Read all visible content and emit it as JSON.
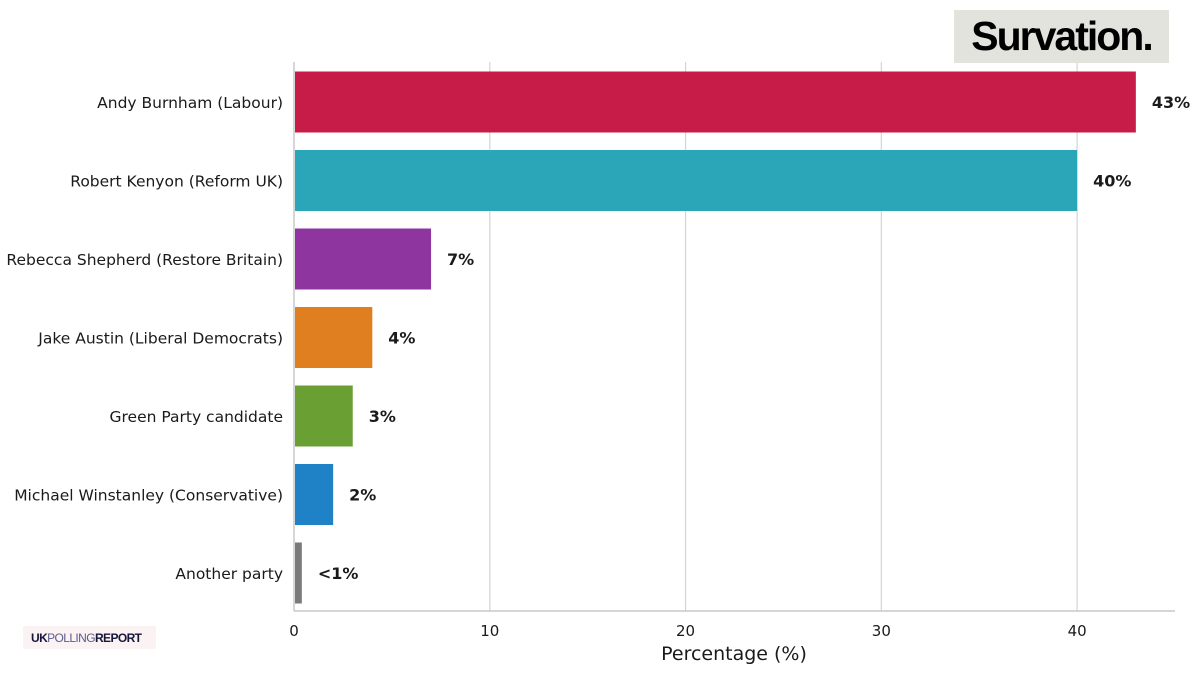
{
  "branding": {
    "pollster_logo_text": "Survation.",
    "source_logo": {
      "part1": "UK",
      "part2": "POLLING",
      "part3": "REPORT"
    }
  },
  "chart_data": {
    "type": "bar",
    "orientation": "horizontal",
    "title": "",
    "xlabel": "Percentage (%)",
    "ylabel": "",
    "xlim": [
      0,
      45
    ],
    "x_ticks": [
      0,
      10,
      20,
      30,
      40
    ],
    "grid": "vertical",
    "categories": [
      "Andy Burnham (Labour)",
      "Robert Kenyon (Reform UK)",
      "Rebecca Shepherd (Restore Britain)",
      "Jake Austin (Liberal Democrats)",
      "Green Party candidate",
      "Michael Winstanley (Conservative)",
      "Another party"
    ],
    "values": [
      43,
      40,
      7,
      4,
      3,
      2,
      0.4
    ],
    "value_labels": [
      "43%",
      "40%",
      "7%",
      "4%",
      "3%",
      "2%",
      "<1%"
    ],
    "colors": [
      "#c71c47",
      "#2aa6b8",
      "#8e35a0",
      "#e07f1f",
      "#6a9f33",
      "#1f82c6",
      "#7a7a7a"
    ]
  }
}
